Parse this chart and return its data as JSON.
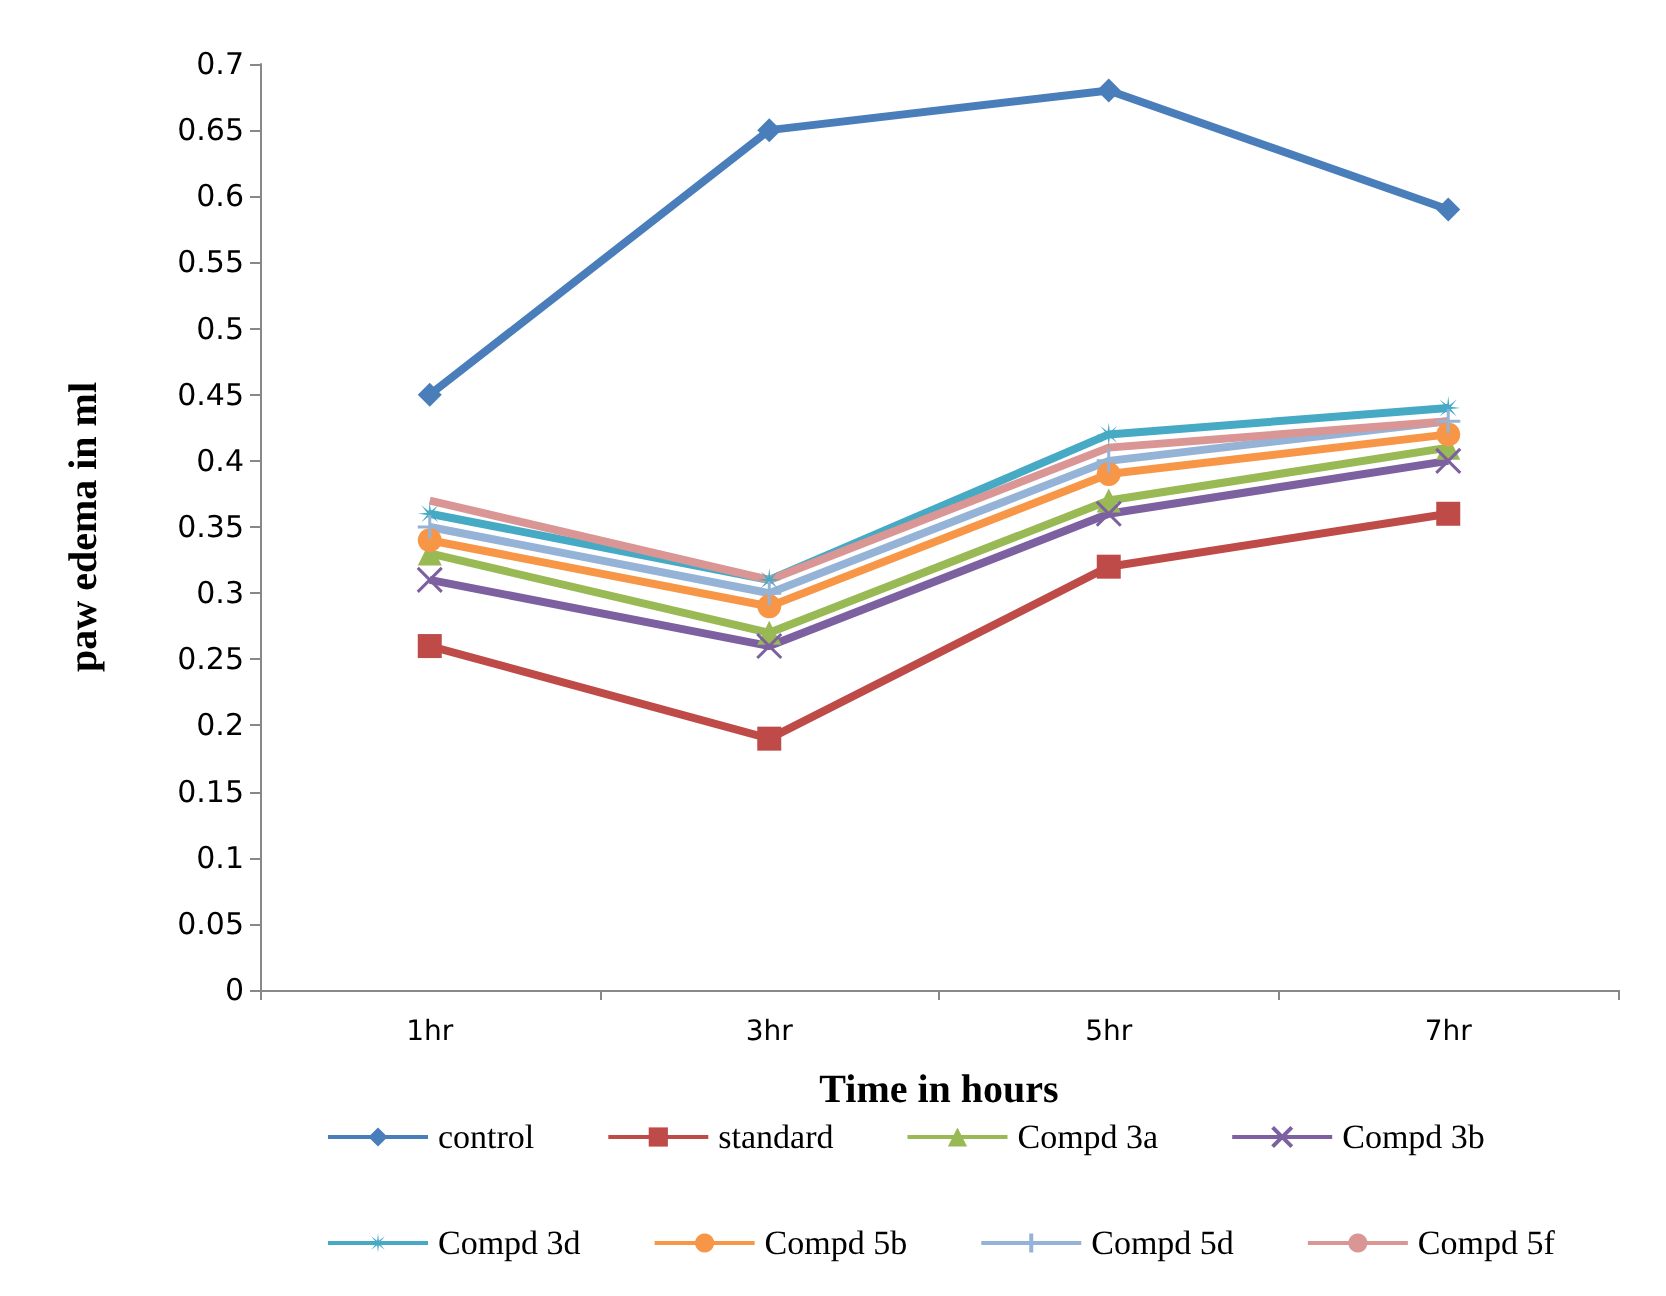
{
  "chart_data": {
    "type": "line",
    "xlabel": "Time in hours",
    "ylabel": "paw edema in ml",
    "categories": [
      "1hr",
      "3hr",
      "5hr",
      "7hr"
    ],
    "ylim": [
      0,
      0.7
    ],
    "yticks": [
      0,
      0.05,
      0.1,
      0.15,
      0.2,
      0.25,
      0.3,
      0.35,
      0.4,
      0.45,
      0.5,
      0.55,
      0.6,
      0.65,
      0.7
    ],
    "grid": false,
    "legend": "bottom",
    "series": [
      {
        "name": "control",
        "color": "#4a7ebb",
        "marker": "diamond",
        "values": [
          0.45,
          0.65,
          0.68,
          0.59
        ]
      },
      {
        "name": "standard",
        "color": "#be4b48",
        "marker": "square",
        "values": [
          0.26,
          0.19,
          0.32,
          0.36
        ]
      },
      {
        "name": "Compd 3a",
        "color": "#98b954",
        "marker": "triangle",
        "values": [
          0.33,
          0.27,
          0.37,
          0.41
        ]
      },
      {
        "name": "Compd 3b",
        "color": "#7d60a0",
        "marker": "cross",
        "values": [
          0.31,
          0.26,
          0.36,
          0.4
        ]
      },
      {
        "name": "Compd 3d",
        "color": "#46aac5",
        "marker": "star",
        "values": [
          0.36,
          0.31,
          0.42,
          0.44
        ]
      },
      {
        "name": "Compd 5b",
        "color": "#f79646",
        "marker": "circle",
        "values": [
          0.34,
          0.29,
          0.39,
          0.42
        ]
      },
      {
        "name": "Compd 5d",
        "color": "#95b3d7",
        "marker": "plus",
        "values": [
          0.35,
          0.3,
          0.4,
          0.43
        ]
      },
      {
        "name": "Compd 5f",
        "color": "#d99694",
        "marker": "none",
        "values": [
          0.37,
          0.31,
          0.41,
          0.43
        ]
      }
    ]
  }
}
